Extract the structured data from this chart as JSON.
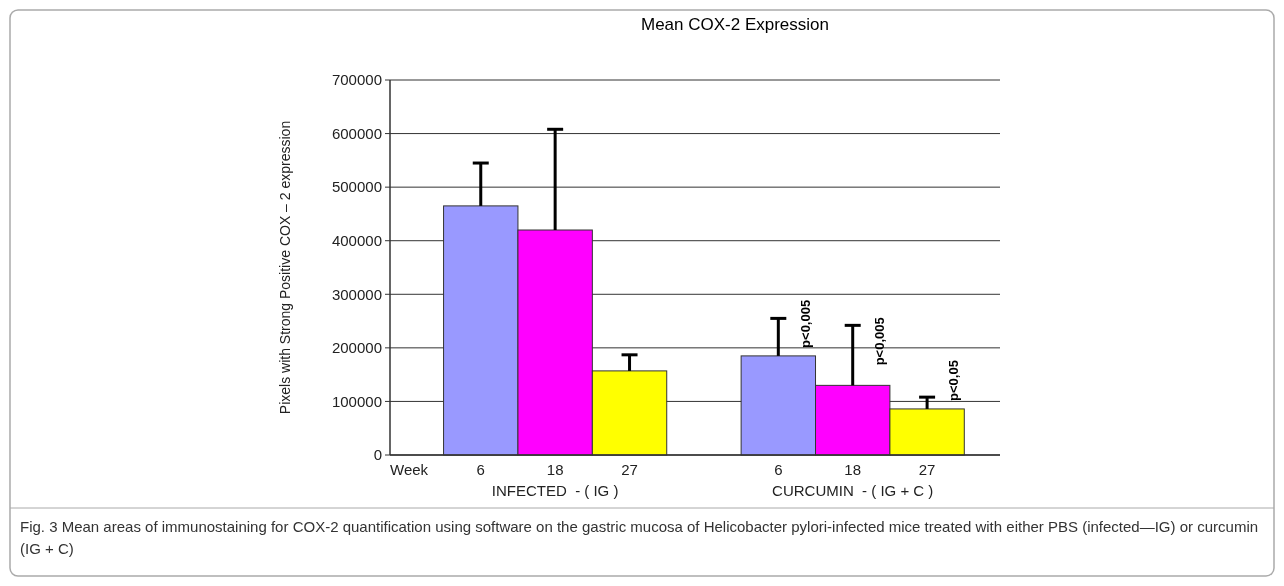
{
  "chart_data": {
    "type": "bar",
    "title": "Mean COX-2 Expression",
    "ylabel": "Pixels with Strong Positive COX – 2 expression",
    "categories": [
      "6",
      "18",
      "27",
      null,
      "6",
      "18",
      "27"
    ],
    "values": [
      465000,
      420000,
      157000,
      null,
      185000,
      130000,
      86000
    ],
    "colors": [
      "#9999ff",
      "#ff00ff",
      "#ffff00",
      null,
      "#9999ff",
      "#ff00ff",
      "#ffff00"
    ],
    "errors": [
      [
        465000,
        545000
      ],
      [
        420000,
        608000
      ],
      [
        157000,
        187000
      ],
      null,
      [
        185000,
        255000
      ],
      [
        130000,
        242000
      ],
      [
        86000,
        108000
      ]
    ],
    "ylim": [
      0,
      700000
    ],
    "yticks": [
      0,
      100000,
      200000,
      300000,
      400000,
      500000,
      600000,
      700000
    ],
    "grid": "y",
    "annotations": [
      "Week",
      "INFECTED  - ( IG )",
      "CURCUMIN  - ( IG + C )",
      "p<0,005",
      "p<0,005",
      "p<0,05",
      "Fig. 3 Mean areas of immunostaining for COX-2 quantification using software on the gastric mucosa of Helicobacter pylori-infected mice treated with either PBS (infected—IG) or curcumin (IG + C)"
    ]
  }
}
